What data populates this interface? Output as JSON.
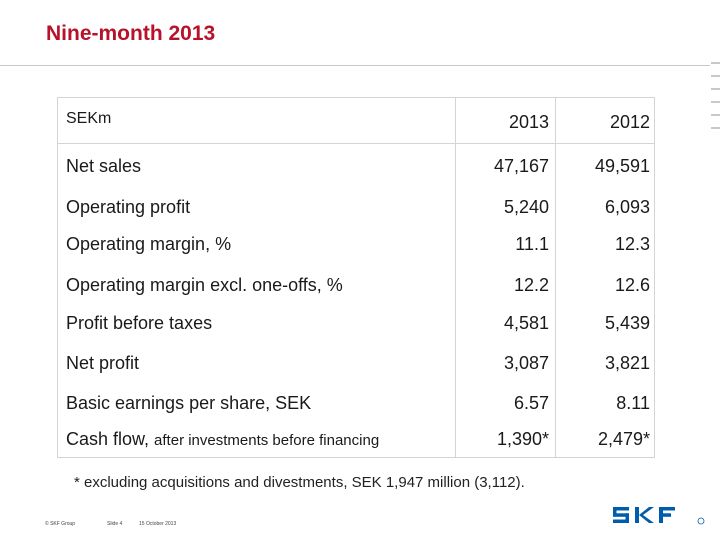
{
  "title": "Nine-month 2013",
  "table": {
    "header": {
      "label": "SEKm",
      "col1": "2013",
      "col2": "2012"
    },
    "rows": [
      {
        "label": "Net sales",
        "v2013": "47,167",
        "v2012": "49,591"
      },
      {
        "label": "Operating profit",
        "v2013": "5,240",
        "v2012": "6,093"
      },
      {
        "label": "Operating margin, %",
        "v2013": "11.1",
        "v2012": "12.3"
      },
      {
        "label": "Operating margin excl. one-offs, %",
        "v2013": "12.2",
        "v2012": "12.6"
      },
      {
        "label": "Profit before taxes",
        "v2013": "4,581",
        "v2012": "5,439"
      },
      {
        "label": "Net profit",
        "v2013": "3,087",
        "v2012": "3,821"
      },
      {
        "label": "Basic earnings per share, SEK",
        "v2013": "6.57",
        "v2012": "8.11"
      },
      {
        "label": "Cash flow, ",
        "label_small": "after investments before financing",
        "v2013": "1,390*",
        "v2012": "2,479*"
      }
    ]
  },
  "footnote": "* excluding acquisitions and divestments, SEK 1,947 million (3,112).",
  "footer": {
    "copyright": "© SKF Group",
    "slide": "Slide 4",
    "date": "15 October 2013"
  },
  "logo": {
    "text": "SKF",
    "registered": "®"
  },
  "colors": {
    "title": "#b8122a",
    "logo": "#005dab",
    "rules": "#d4d4d4"
  }
}
